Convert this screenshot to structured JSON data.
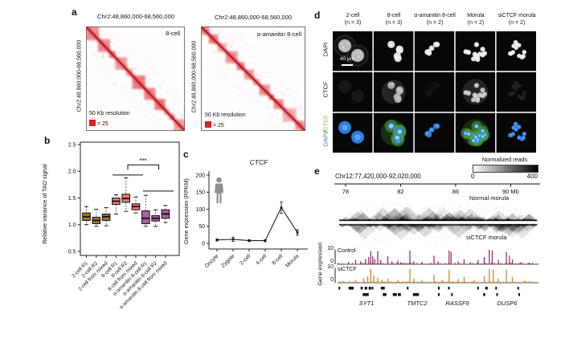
{
  "figure": {
    "panels": {
      "a": {
        "label": "a",
        "maps": [
          {
            "title": "Chr2:48,860,000-68,560,000",
            "ylabel": "Chr2:48,860,000-68,560,000",
            "condition": "8-cell",
            "resolution": "50 Kb resolution",
            "scale_value": "= 25"
          },
          {
            "title": "Chr2:48,860,000-68,560,000",
            "ylabel": "Chr2:48,860,000-68,560,000",
            "condition": "α-amanitin 8-cell",
            "resolution": "50 Kb resolution",
            "scale_value": "= 25"
          }
        ],
        "heat_color": "#d8232a",
        "legend_color": "#e02020"
      },
      "b": {
        "label": "b"
      },
      "c": {
        "label": "c"
      },
      "d": {
        "label": "d",
        "columns": [
          {
            "stage": "2-cell",
            "n": "(n = 3)"
          },
          {
            "stage": "8-cell",
            "n": "(n = 3)"
          },
          {
            "stage": "α-amanitin 8-cell",
            "n": "(n = 2)"
          },
          {
            "stage": "Morula",
            "n": "(n = 2)"
          },
          {
            "stage": "siCTCF morula",
            "n": "(n = 2)"
          }
        ],
        "row_labels": [
          "DAPI",
          "CTCF"
        ],
        "merge_label": {
          "dapi": "DAPI",
          "sep": "/",
          "ctcf": "CTCF"
        },
        "scale_bar": "40 μm",
        "nuclei_counts": [
          2,
          5,
          6,
          12,
          12
        ],
        "ctcf_signal": [
          "faint",
          "bright",
          "faint",
          "bright",
          "faint"
        ],
        "colors": {
          "dapi_blue": "#2f7ce0",
          "ctcf_green": "#57b33a",
          "label_blue": "#3b6fd4",
          "label_green": "#7dc242"
        }
      },
      "e": {
        "label": "e",
        "region": "Chr12:77,420,000-92,020,000",
        "colorbar": {
          "label": "Normalized reads",
          "min": "0",
          "max": "400"
        },
        "hic_labels": [
          "Normal morula",
          "siCTCF morula"
        ],
        "gene_expression_label": "Gene expression"
      }
    }
  },
  "chart_data": [
    {
      "id": "tad_variance_boxplot",
      "type": "box",
      "ylabel": "Relative variance of TAD signal",
      "yticks": [
        "0.5",
        "1.0",
        "1.5",
        "2.0",
        "2.5"
      ],
      "ylim": [
        0.43,
        2.55
      ],
      "categories": [
        "2-cell R1",
        "2-cell R2",
        "2-cell from mixed",
        "8-cell R1",
        "8-cell R2",
        "8-cell from mixed",
        "α-amanitin 8-cell R1",
        "α-amanitin 8-cell R2",
        "α-amanitin 8-cell from mixed"
      ],
      "group_colors": [
        "#a5761f",
        "#a5761f",
        "#a5761f",
        "#ed7a6e",
        "#ed7a6e",
        "#ed7a6e",
        "#a95fa4",
        "#a95fa4",
        "#a95fa4"
      ],
      "boxes": [
        {
          "lo": 1.0,
          "q1": 1.08,
          "med": 1.15,
          "q3": 1.22,
          "hi": 1.34
        },
        {
          "lo": 0.97,
          "q1": 1.02,
          "med": 1.08,
          "q3": 1.14,
          "hi": 1.29
        },
        {
          "lo": 0.98,
          "q1": 1.08,
          "med": 1.15,
          "q3": 1.2,
          "hi": 1.32
        },
        {
          "lo": 1.2,
          "q1": 1.38,
          "med": 1.44,
          "q3": 1.5,
          "hi": 1.56
        },
        {
          "lo": 1.25,
          "q1": 1.42,
          "med": 1.49,
          "q3": 1.57,
          "hi": 1.88
        },
        {
          "lo": 1.22,
          "q1": 1.28,
          "med": 1.34,
          "q3": 1.39,
          "hi": 1.52
        },
        {
          "lo": 0.97,
          "q1": 1.02,
          "med": 1.12,
          "q3": 1.26,
          "hi": 1.55
        },
        {
          "lo": 0.97,
          "q1": 1.07,
          "med": 1.12,
          "q3": 1.17,
          "hi": 1.28
        },
        {
          "lo": 1.04,
          "q1": 1.12,
          "med": 1.2,
          "q3": 1.28,
          "hi": 1.36
        }
      ],
      "significance": {
        "stars": "***",
        "bracket_value": 2.12,
        "overline_group2": 1.93,
        "overline_group3": 1.63
      }
    },
    {
      "id": "ctcf_expression",
      "type": "line",
      "title": "CTCF",
      "ylabel": "Gene expression (RPKM)",
      "yticks": [
        "0",
        "50",
        "100",
        "150",
        "200"
      ],
      "ylim": [
        0,
        200
      ],
      "categories": [
        "Oocyte",
        "Zygote",
        "2-cell",
        "4-cell",
        "8-cell",
        "Morula"
      ],
      "values": [
        10,
        12,
        8,
        8,
        105,
        32
      ],
      "errors": [
        3,
        6,
        3,
        3,
        17,
        8
      ]
    },
    {
      "id": "genome_tracks",
      "type": "area",
      "region": "Chr12:77,420,000-92,020,000",
      "xlim_mb": [
        77.42,
        92.02
      ],
      "xticks": [
        {
          "mb": 78,
          "label": "78"
        },
        {
          "mb": 82,
          "label": "82"
        },
        {
          "mb": 86,
          "label": "86"
        },
        {
          "mb": 90,
          "label": "90 Mb"
        }
      ],
      "colorbar": {
        "label": "Normalized reads",
        "min": 0,
        "max": 400
      },
      "hic": [
        "Normal morula",
        "siCTCF morula"
      ],
      "tracks": [
        {
          "name": "Control",
          "color": "#a8286e",
          "ymax": "10",
          "ymin": "0",
          "peaks": [
            [
              0.055,
              1.5
            ],
            [
              0.09,
              3
            ],
            [
              0.115,
              2
            ],
            [
              0.14,
              3.5
            ],
            [
              0.155,
              5
            ],
            [
              0.165,
              9
            ],
            [
              0.175,
              5.5
            ],
            [
              0.185,
              3.5
            ],
            [
              0.2,
              9
            ],
            [
              0.215,
              3
            ],
            [
              0.25,
              5.5
            ],
            [
              0.27,
              2
            ],
            [
              0.3,
              2.5
            ],
            [
              0.315,
              1.5
            ],
            [
              0.36,
              9.5
            ],
            [
              0.38,
              2
            ],
            [
              0.42,
              1.5
            ],
            [
              0.48,
              6
            ],
            [
              0.5,
              2
            ],
            [
              0.555,
              9.5
            ],
            [
              0.565,
              8.5
            ],
            [
              0.6,
              2
            ],
            [
              0.63,
              3.5
            ],
            [
              0.66,
              1.5
            ],
            [
              0.7,
              3
            ],
            [
              0.73,
              5
            ],
            [
              0.755,
              10
            ],
            [
              0.77,
              9.5
            ],
            [
              0.8,
              3
            ],
            [
              0.84,
              8.5
            ],
            [
              0.855,
              6
            ],
            [
              0.87,
              3.5
            ],
            [
              0.91,
              1.5
            ],
            [
              0.97,
              1
            ]
          ]
        },
        {
          "name": "siCTCF",
          "color": "#dd8427",
          "ymax": "10",
          "ymin": "0",
          "peaks": [
            [
              0.09,
              2
            ],
            [
              0.13,
              3
            ],
            [
              0.15,
              4.5
            ],
            [
              0.165,
              9.5
            ],
            [
              0.18,
              5
            ],
            [
              0.2,
              3.5
            ],
            [
              0.22,
              2
            ],
            [
              0.25,
              3
            ],
            [
              0.3,
              2
            ],
            [
              0.36,
              9.5
            ],
            [
              0.38,
              3
            ],
            [
              0.42,
              2
            ],
            [
              0.48,
              5.5
            ],
            [
              0.52,
              2
            ],
            [
              0.555,
              9
            ],
            [
              0.6,
              2.5
            ],
            [
              0.63,
              4
            ],
            [
              0.68,
              2
            ],
            [
              0.73,
              4.5
            ],
            [
              0.755,
              9.5
            ],
            [
              0.775,
              9
            ],
            [
              0.8,
              3
            ],
            [
              0.84,
              9
            ],
            [
              0.87,
              4
            ],
            [
              0.93,
              1.5
            ]
          ]
        }
      ],
      "genes": {
        "names": [
          "SYT1",
          "TMTC2",
          "RASSF9",
          "DUSP6"
        ],
        "name_x": [
          0.144,
          0.396,
          0.596,
          0.844
        ],
        "row1": [
          [
            0.005,
            0.008
          ],
          [
            0.055,
            0.025
          ],
          [
            0.115,
            0.01
          ],
          [
            0.135,
            0.012
          ],
          [
            0.155,
            0.012
          ],
          [
            0.17,
            0.008
          ],
          [
            0.215,
            0.02
          ],
          [
            0.345,
            0.008
          ],
          [
            0.5,
            0.008
          ],
          [
            0.55,
            0.008
          ],
          [
            0.695,
            0.008
          ],
          [
            0.735,
            0.012
          ],
          [
            0.785,
            0.008
          ],
          [
            0.895,
            0.008
          ]
        ],
        "row2": [
          [
            0.125,
            0.03
          ],
          [
            0.225,
            0.018
          ],
          [
            0.275,
            0.02
          ],
          [
            0.3,
            0.015
          ],
          [
            0.375,
            0.03
          ],
          [
            0.5,
            0.008
          ],
          [
            0.565,
            0.008
          ],
          [
            0.725,
            0.01
          ],
          [
            0.79,
            0.008
          ],
          [
            0.9,
            0.008
          ]
        ]
      }
    }
  ]
}
